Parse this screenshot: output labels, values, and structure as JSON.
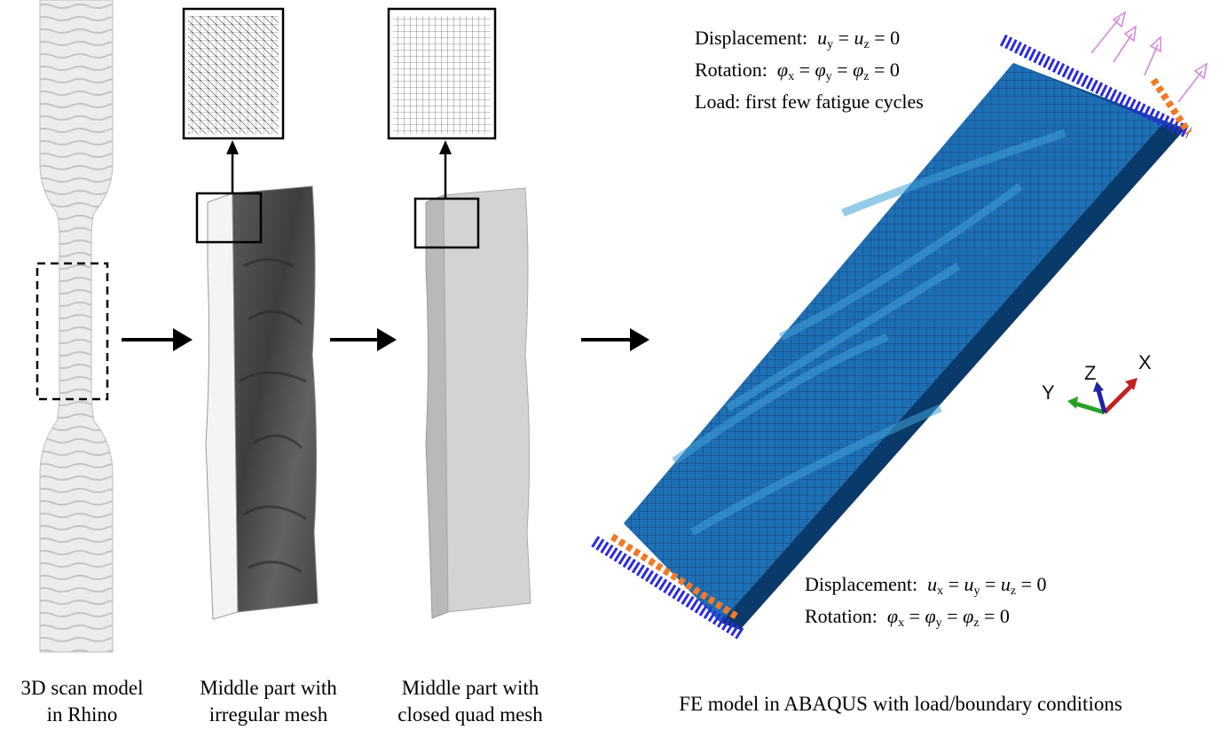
{
  "captions": {
    "scan_line1": "3D scan model",
    "scan_line2": "in Rhino",
    "irregular_line1": "Middle part with",
    "irregular_line2": "irregular mesh",
    "quad_line1": "Middle part with",
    "quad_line2": "closed quad mesh",
    "fe_model": "FE model in ABAQUS  with load/boundary conditions"
  },
  "top_conditions": {
    "displacement_prefix": "Displacement:",
    "rotation_prefix": "Rotation:",
    "load_label": "Load:  first few fatigue cycles",
    "eq_zero": "= 0"
  },
  "bottom_conditions": {
    "displacement_prefix": "Displacement:",
    "rotation_prefix": "Rotation:",
    "eq_zero": "= 0"
  },
  "triad": {
    "x_label": "X",
    "y_label": "Y",
    "z_label": "Z"
  },
  "colors": {
    "mesh_blue": "#1f6fb5",
    "mesh_light": "#3fa0d6",
    "constraint_blue": "#2a2ae0",
    "constraint_orange": "#f07a28",
    "load_arrow": "#d58ad8"
  }
}
